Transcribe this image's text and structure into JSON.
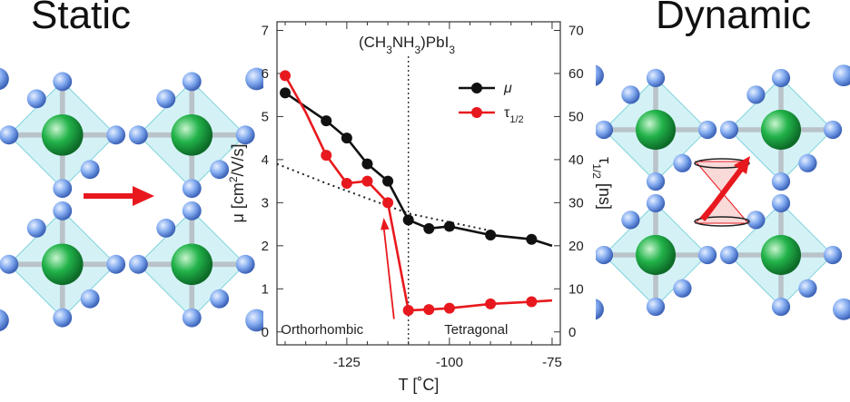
{
  "panels": {
    "left_title": "Static",
    "right_title": "Dynamic"
  },
  "colors": {
    "mu": "#111111",
    "tau": "#e8191e",
    "octahedron": "#9fe3ea",
    "iodine": "#7fa8ee",
    "lead": "#22b34a",
    "arrow": "#e8191e"
  },
  "chart_data": {
    "type": "line",
    "title": "(CH3NH3)PbI3",
    "xlabel": "T [˚C]",
    "ylabel": "μ [cm2/V/s]",
    "y2label": "τ1/2 [ns]",
    "xlim": [
      -142,
      -73
    ],
    "ylim": [
      -0.3,
      7.2
    ],
    "y2lim": [
      -3,
      72
    ],
    "xticks": [
      -125,
      -100,
      -75
    ],
    "yticks": [
      0,
      1,
      2,
      3,
      4,
      5,
      6,
      7
    ],
    "y2ticks": [
      0,
      10,
      20,
      30,
      40,
      50,
      60,
      70
    ],
    "legend_position": "top-right",
    "series": [
      {
        "name": "μ",
        "axis": "left",
        "color": "#111111",
        "x": [
          -140,
          -130,
          -125,
          -120,
          -115,
          -110,
          -105,
          -100,
          -90,
          -80,
          -75
        ],
        "y": [
          5.55,
          4.9,
          4.5,
          3.9,
          3.5,
          2.6,
          2.4,
          2.45,
          2.25,
          2.15,
          2.0
        ],
        "markers": [
          true,
          true,
          true,
          true,
          true,
          true,
          true,
          true,
          true,
          true,
          false
        ]
      },
      {
        "name": "τ1/2",
        "axis": "right",
        "color": "#e8191e",
        "x": [
          -140,
          -135,
          -130,
          -125,
          -120,
          -115,
          -110,
          -105,
          -100,
          -90,
          -80,
          -75
        ],
        "y": [
          59.5,
          51,
          41,
          34.5,
          35,
          30,
          5,
          5.2,
          5.5,
          6.5,
          7,
          7.3
        ],
        "markers": [
          true,
          false,
          true,
          true,
          true,
          true,
          true,
          true,
          true,
          true,
          true,
          false
        ]
      }
    ],
    "reference_line": {
      "x": -110,
      "style": "dotted"
    },
    "trend_line": {
      "style": "dotted",
      "x": [
        -142,
        -130,
        -120,
        -110,
        -100,
        -90
      ],
      "y": [
        3.9,
        3.45,
        3.1,
        2.75,
        2.55,
        2.35
      ]
    },
    "annotations": [
      {
        "text": "Orthorhombic",
        "x": -131,
        "y": -0.05
      },
      {
        "text": "Tetragonal",
        "x": -93.5,
        "y": -0.05
      }
    ],
    "arrow_annotation": {
      "from": [
        -113.5,
        0.3
      ],
      "to": [
        -116,
        2.65
      ]
    }
  }
}
